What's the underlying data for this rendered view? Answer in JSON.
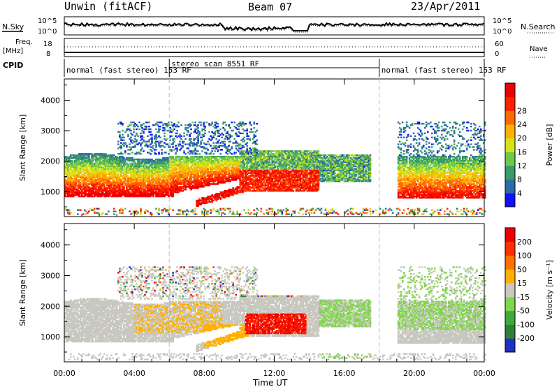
{
  "header": {
    "station": "Unwin (fitACF)",
    "beam": "Beam 07",
    "date": "23/Apr/2011"
  },
  "top_panels": {
    "nsky_label": "N.Sky",
    "nsearch_label": "N.Search",
    "freq_label_1": "Freq.",
    "freq_label_2": "[MHz]",
    "nave_label": "Nave",
    "cpid_label": "CPID",
    "noise_ticks_left": [
      "10^5",
      "10^0"
    ],
    "noise_ticks_right": [
      "10^5",
      "10^0"
    ],
    "freq_ticks": [
      "18",
      "8"
    ],
    "nave_ticks": [
      "60",
      "0"
    ],
    "cpid_segments": [
      {
        "label": "normal (fast stereo) 153 RF",
        "start_hour": 0,
        "end_hour": 6
      },
      {
        "label": "stereo_scan 8551 RF",
        "start_hour": 6,
        "end_hour": 18
      },
      {
        "label": "normal (fast stereo) 153 RF",
        "start_hour": 18,
        "end_hour": 24
      }
    ]
  },
  "chart_data": [
    {
      "type": "heatmap",
      "name": "power",
      "ylabel": "Slant Range [km]",
      "xlabel": "Time UT",
      "x_ticks": [
        "00:00",
        "04:00",
        "08:00",
        "12:00",
        "16:00",
        "20:00",
        "00:00"
      ],
      "y_ticks": [
        "1000",
        "2000",
        "3000",
        "4000"
      ],
      "xlim_hours": [
        0,
        24
      ],
      "ylim_km": [
        180,
        4700
      ],
      "colorbar": {
        "label": "Power [dB]",
        "ticks": [
          "4",
          "8",
          "12",
          "16",
          "20",
          "24",
          "28"
        ],
        "colors": [
          "#1010ff",
          "#2d6aa8",
          "#3a9a6a",
          "#6fc84a",
          "#d6e21a",
          "#ffb000",
          "#ff6a00",
          "#ff2000",
          "#ee0000"
        ]
      }
    },
    {
      "type": "heatmap",
      "name": "velocity",
      "ylabel": "Slant Range [km]",
      "xlabel": "Time UT",
      "x_ticks": [
        "00:00",
        "04:00",
        "08:00",
        "12:00",
        "16:00",
        "20:00",
        "00:00"
      ],
      "y_ticks": [
        "1000",
        "2000",
        "3000",
        "4000"
      ],
      "xlim_hours": [
        0,
        24
      ],
      "ylim_km": [
        180,
        4700
      ],
      "colorbar": {
        "label": "Velocity [m s⁻¹]",
        "ticks": [
          "200",
          "100",
          "50",
          "15",
          "-15",
          "-50",
          "-100",
          "-200"
        ],
        "colors": [
          "#2030c0",
          "#2f7f3a",
          "#3daa3a",
          "#7fd64a",
          "#c8c8c0",
          "#ffb000",
          "#ff7000",
          "#ff3000",
          "#ee0000"
        ]
      }
    }
  ]
}
